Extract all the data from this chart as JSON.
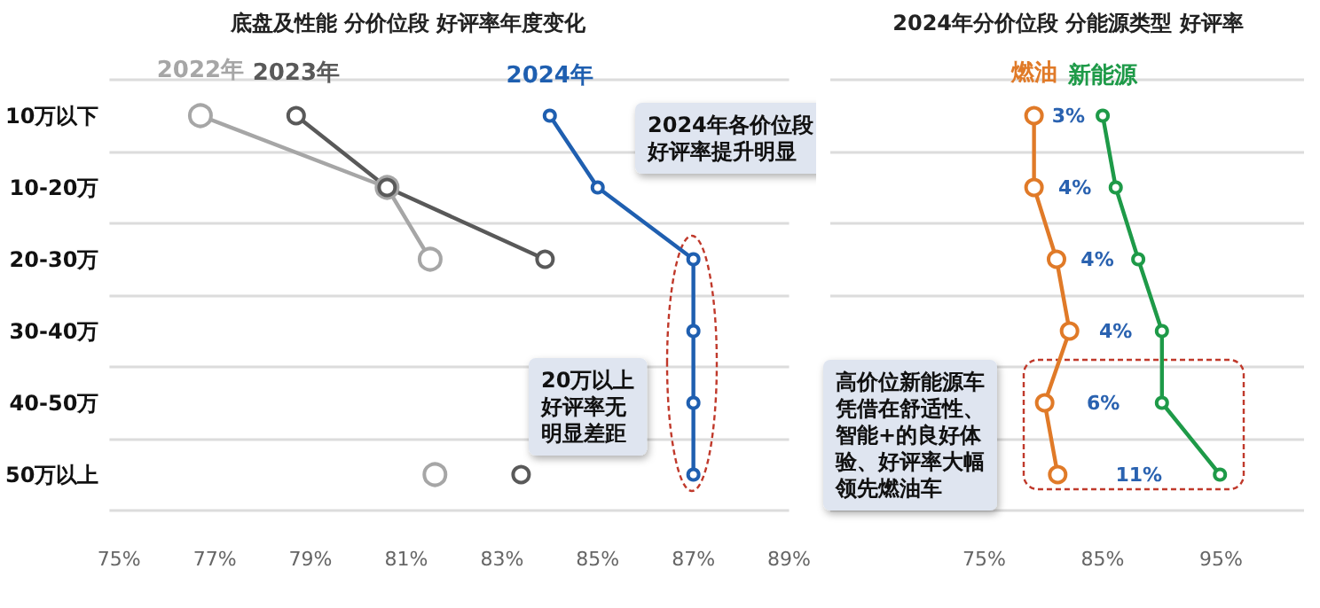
{
  "chart_data": [
    {
      "type": "line",
      "title": "底盘及性能 分价位段 好评率年度变化",
      "categories": [
        "10万以下",
        "10-20万",
        "20-30万",
        "30-40万",
        "40-50万",
        "50万以上"
      ],
      "series": [
        {
          "name": "2022年",
          "color": "#a6a6a6",
          "values": [
            76.7,
            80.6,
            81.5,
            null,
            null,
            81.6
          ]
        },
        {
          "name": "2023年",
          "color": "#595959",
          "values": [
            78.7,
            80.6,
            83.9,
            null,
            null,
            83.4
          ]
        },
        {
          "name": "2024年",
          "color": "#1f5fb0",
          "values": [
            84.0,
            85.0,
            87.0,
            87.0,
            87.0,
            87.0
          ]
        }
      ],
      "xlim": [
        74.8,
        89
      ],
      "xticks": [
        {
          "value": 75,
          "label": "75%"
        },
        {
          "value": 77,
          "label": "77%"
        },
        {
          "value": 79,
          "label": "79%"
        },
        {
          "value": 81,
          "label": "81%"
        },
        {
          "value": 83,
          "label": "83%"
        },
        {
          "value": 85,
          "label": "85%"
        },
        {
          "value": 87,
          "label": "87%"
        },
        {
          "value": 89,
          "label": "89%"
        }
      ],
      "grid": "y",
      "marker": "circle",
      "line_style": "solid",
      "orientation": "horizontal",
      "annotations": [
        "2024年各价位段好评率提升明显",
        "20万以上好评率无明显差距"
      ]
    },
    {
      "type": "line",
      "title": "2024年分价位段 分能源类型 好评率",
      "categories": [
        null,
        null,
        null,
        null,
        null,
        null
      ],
      "series": [
        {
          "name": "燃油",
          "color": "#e07a28",
          "values": [
            79.2,
            79.2,
            81.1,
            82.2,
            80.1,
            81.2
          ]
        },
        {
          "name": "新能源",
          "color": "#1e9a48",
          "values": [
            85.0,
            86.1,
            88.0,
            90.0,
            90.0,
            94.9
          ]
        }
      ],
      "xlim": [
        62,
        102
      ],
      "xticks": [
        {
          "value": 75,
          "label": "75%"
        },
        {
          "value": 85,
          "label": "85%"
        },
        {
          "value": 95,
          "label": "95%"
        }
      ],
      "grid": "y",
      "marker": "circle",
      "line_style": "solid",
      "tick_labels": "x",
      "orientation": "horizontal",
      "annotations": [
        "3%",
        "4%",
        "4%",
        "4%",
        "6%",
        "11%",
        "高价位新能源车凭借在舒适性、智能+的良好体验、好评率大幅领先燃油车"
      ]
    }
  ]
}
